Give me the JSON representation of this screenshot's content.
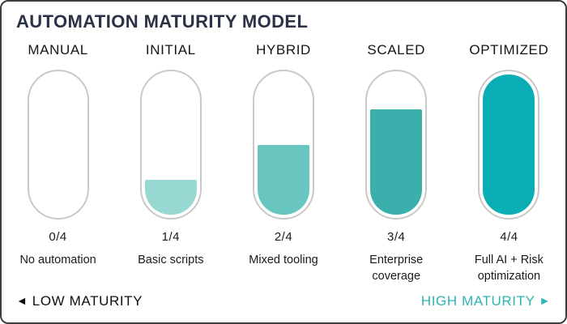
{
  "title": "AUTOMATION MATURITY MODEL",
  "chart_data": {
    "type": "bar",
    "title": "AUTOMATION MATURITY MODEL",
    "categories": [
      "MANUAL",
      "INITIAL",
      "HYBRID",
      "SCALED",
      "OPTIMIZED"
    ],
    "values": [
      0,
      1,
      2,
      3,
      4
    ],
    "value_max": 4,
    "value_labels": [
      "0/4",
      "1/4",
      "2/4",
      "3/4",
      "4/4"
    ],
    "annotations": [
      "No automation",
      "Basic scripts",
      "Mixed tooling",
      "Enterprise coverage",
      "Full AI + Risk optimization"
    ],
    "axis_low_label": "LOW MATURITY",
    "axis_high_label": "HIGH MATURITY"
  },
  "columns": [
    {
      "label": "MANUAL",
      "fraction": "0/4",
      "caption": "No automation",
      "fill_percent": 0,
      "fill_color": ""
    },
    {
      "label": "INITIAL",
      "fraction": "1/4",
      "caption": "Basic scripts",
      "fill_percent": 25,
      "fill_color": "#97d9d2"
    },
    {
      "label": "HYBRID",
      "fraction": "2/4",
      "caption": "Mixed tooling",
      "fill_percent": 50,
      "fill_color": "#68c5c0"
    },
    {
      "label": "SCALED",
      "fraction": "3/4",
      "caption": "Enterprise coverage",
      "fill_percent": 75,
      "fill_color": "#3aafab"
    },
    {
      "label": "OPTIMIZED",
      "fraction": "4/4",
      "caption": "Full AI + Risk optimization",
      "fill_percent": 100,
      "fill_color": "#0aaeb4"
    }
  ],
  "footer": {
    "low_arrow": "◄",
    "low_label": "LOW MATURITY",
    "high_label": "HIGH MATURITY",
    "high_arrow": "►",
    "high_color": "#2cb4b6"
  }
}
